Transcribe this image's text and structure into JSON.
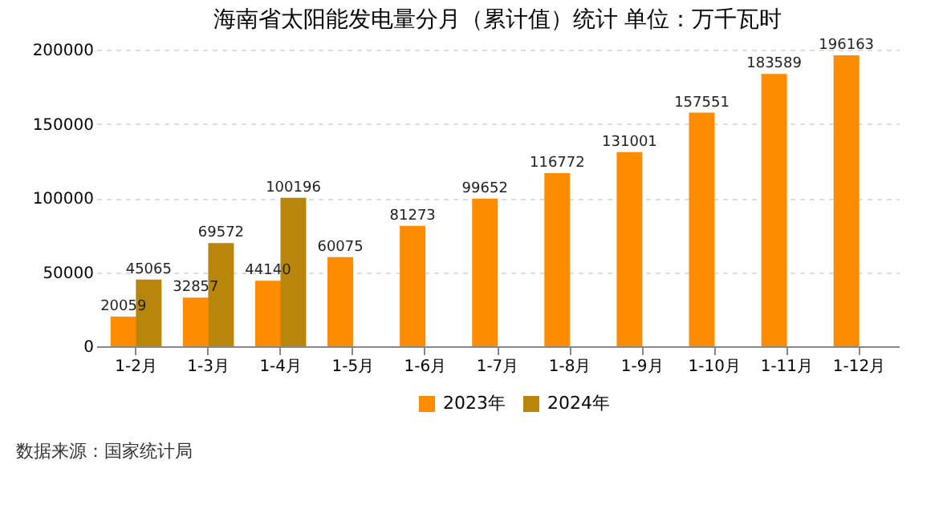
{
  "chart_data": {
    "type": "bar",
    "title": "海南省太阳能发电量分月（累计值）统计  单位：万千瓦时",
    "categories": [
      "1-2月",
      "1-3月",
      "1-4月",
      "1-5月",
      "1-6月",
      "1-7月",
      "1-8月",
      "1-9月",
      "1-10月",
      "1-11月",
      "1-12月"
    ],
    "series": [
      {
        "name": "2023年",
        "color": "#ff8c00",
        "values": [
          20059,
          32857,
          44140,
          60075,
          81273,
          99652,
          116772,
          131001,
          157551,
          183589,
          196163
        ]
      },
      {
        "name": "2024年",
        "color": "#b8860b",
        "values": [
          45065,
          69572,
          100196,
          null,
          null,
          null,
          null,
          null,
          null,
          null,
          null
        ]
      }
    ],
    "ylim": [
      0,
      200000
    ],
    "yticks": [
      0,
      50000,
      100000,
      150000,
      200000
    ],
    "grid": "y",
    "legend": "bottom",
    "data_labels": true,
    "annotations": [
      "数据来源：国家统计局"
    ]
  }
}
